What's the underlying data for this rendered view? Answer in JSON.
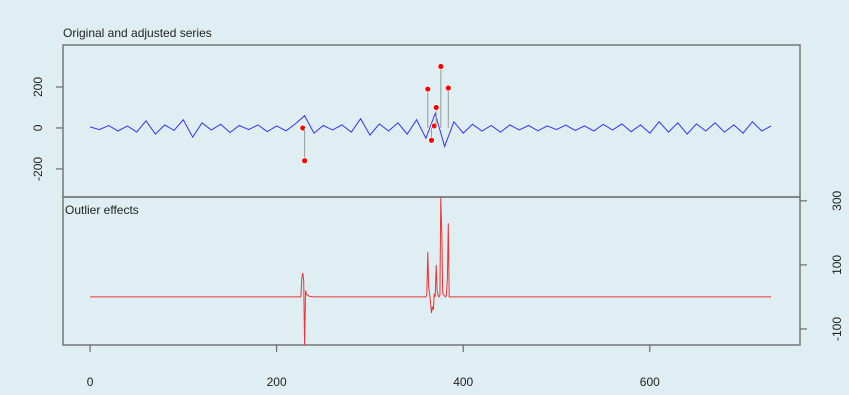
{
  "chart_data": [
    {
      "type": "line",
      "title": "Original and adjusted series",
      "x": [
        0,
        10,
        20,
        30,
        40,
        50,
        60,
        70,
        80,
        90,
        100,
        110,
        120,
        130,
        140,
        150,
        160,
        170,
        180,
        190,
        200,
        210,
        220,
        230,
        240,
        250,
        260,
        270,
        280,
        290,
        300,
        310,
        320,
        330,
        340,
        350,
        360,
        370,
        380,
        390,
        400,
        410,
        420,
        430,
        440,
        450,
        460,
        470,
        480,
        490,
        500,
        510,
        520,
        530,
        540,
        550,
        560,
        570,
        580,
        590,
        600,
        610,
        620,
        630,
        640,
        650,
        660,
        670,
        680,
        690,
        700,
        710,
        720,
        730
      ],
      "series": [
        {
          "color": "#3333ff",
          "values": [
            5,
            -8,
            12,
            -15,
            10,
            -20,
            35,
            -30,
            15,
            -12,
            40,
            -45,
            25,
            -10,
            18,
            -22,
            12,
            -8,
            15,
            -18,
            10,
            -14,
            20,
            60,
            -25,
            12,
            -10,
            15,
            -20,
            45,
            -35,
            20,
            -15,
            25,
            -30,
            40,
            -50,
            70,
            -90,
            30,
            -25,
            18,
            -15,
            12,
            -20,
            15,
            -10,
            12,
            -14,
            10,
            -8,
            14,
            -12,
            10,
            -15,
            18,
            -10,
            20,
            -18,
            15,
            -25,
            30,
            -20,
            25,
            -30,
            20,
            -15,
            25,
            -20,
            15,
            -25,
            30,
            -15,
            10
          ]
        }
      ],
      "outliers": {
        "color": "#ff0000",
        "x": [
          228,
          230,
          362,
          366,
          369,
          371,
          376,
          384
        ],
        "values": [
          0,
          -160,
          190,
          -60,
          10,
          100,
          300,
          195
        ]
      },
      "xlim": [
        -29,
        761
      ],
      "ylim": [
        -337,
        405
      ],
      "yticks": [
        -200,
        0,
        200
      ]
    },
    {
      "type": "line",
      "title": "Outlier effects",
      "x": [
        0,
        226,
        227,
        228,
        229,
        230,
        231,
        232,
        235,
        240,
        358,
        360,
        361,
        362,
        363,
        364,
        365,
        366,
        367,
        368,
        369,
        370,
        371,
        372,
        373,
        374,
        375,
        376,
        377,
        378,
        381,
        382,
        383,
        384,
        385,
        386,
        730
      ],
      "series": [
        {
          "color": "#ee3333",
          "values": [
            0,
            0,
            60,
            75,
            50,
            -150,
            20,
            8,
            2,
            0,
            0,
            0,
            5,
            140,
            30,
            10,
            -20,
            -50,
            -30,
            -40,
            10,
            0,
            100,
            20,
            5,
            0,
            5,
            310,
            200,
            10,
            0,
            5,
            60,
            230,
            0,
            0,
            0
          ]
        }
      ],
      "xlim": [
        -29,
        761
      ],
      "xticks": [
        0,
        200,
        400,
        600
      ],
      "ylim": [
        -150,
        312
      ],
      "yticks": [
        -100,
        100,
        300
      ],
      "yaxis_side": "right"
    }
  ]
}
